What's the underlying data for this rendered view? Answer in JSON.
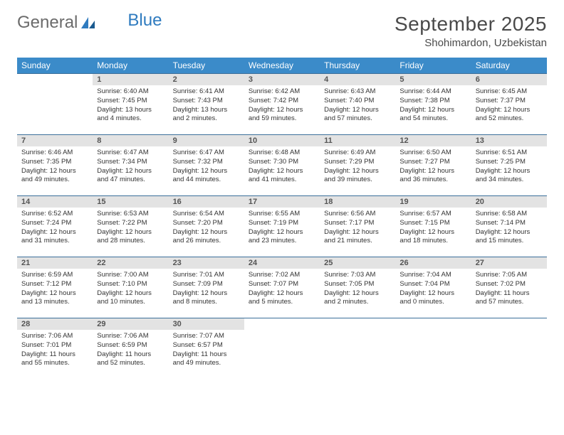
{
  "logo": {
    "text1": "General",
    "text2": "Blue"
  },
  "header": {
    "month": "September 2025",
    "location": "Shohimardon, Uzbekistan"
  },
  "colors": {
    "header_bg": "#3b8bc9",
    "header_text": "#ffffff",
    "row_border": "#3b6f9a",
    "date_bg": "#e3e3e3",
    "logo_gray": "#6b6b6b",
    "logo_blue": "#2f7bbf"
  },
  "day_names": [
    "Sunday",
    "Monday",
    "Tuesday",
    "Wednesday",
    "Thursday",
    "Friday",
    "Saturday"
  ],
  "weeks": [
    [
      {
        "empty": true
      },
      {
        "date": "1",
        "sunrise": "Sunrise: 6:40 AM",
        "sunset": "Sunset: 7:45 PM",
        "daylight": "Daylight: 13 hours and 4 minutes."
      },
      {
        "date": "2",
        "sunrise": "Sunrise: 6:41 AM",
        "sunset": "Sunset: 7:43 PM",
        "daylight": "Daylight: 13 hours and 2 minutes."
      },
      {
        "date": "3",
        "sunrise": "Sunrise: 6:42 AM",
        "sunset": "Sunset: 7:42 PM",
        "daylight": "Daylight: 12 hours and 59 minutes."
      },
      {
        "date": "4",
        "sunrise": "Sunrise: 6:43 AM",
        "sunset": "Sunset: 7:40 PM",
        "daylight": "Daylight: 12 hours and 57 minutes."
      },
      {
        "date": "5",
        "sunrise": "Sunrise: 6:44 AM",
        "sunset": "Sunset: 7:38 PM",
        "daylight": "Daylight: 12 hours and 54 minutes."
      },
      {
        "date": "6",
        "sunrise": "Sunrise: 6:45 AM",
        "sunset": "Sunset: 7:37 PM",
        "daylight": "Daylight: 12 hours and 52 minutes."
      }
    ],
    [
      {
        "date": "7",
        "sunrise": "Sunrise: 6:46 AM",
        "sunset": "Sunset: 7:35 PM",
        "daylight": "Daylight: 12 hours and 49 minutes."
      },
      {
        "date": "8",
        "sunrise": "Sunrise: 6:47 AM",
        "sunset": "Sunset: 7:34 PM",
        "daylight": "Daylight: 12 hours and 47 minutes."
      },
      {
        "date": "9",
        "sunrise": "Sunrise: 6:47 AM",
        "sunset": "Sunset: 7:32 PM",
        "daylight": "Daylight: 12 hours and 44 minutes."
      },
      {
        "date": "10",
        "sunrise": "Sunrise: 6:48 AM",
        "sunset": "Sunset: 7:30 PM",
        "daylight": "Daylight: 12 hours and 41 minutes."
      },
      {
        "date": "11",
        "sunrise": "Sunrise: 6:49 AM",
        "sunset": "Sunset: 7:29 PM",
        "daylight": "Daylight: 12 hours and 39 minutes."
      },
      {
        "date": "12",
        "sunrise": "Sunrise: 6:50 AM",
        "sunset": "Sunset: 7:27 PM",
        "daylight": "Daylight: 12 hours and 36 minutes."
      },
      {
        "date": "13",
        "sunrise": "Sunrise: 6:51 AM",
        "sunset": "Sunset: 7:25 PM",
        "daylight": "Daylight: 12 hours and 34 minutes."
      }
    ],
    [
      {
        "date": "14",
        "sunrise": "Sunrise: 6:52 AM",
        "sunset": "Sunset: 7:24 PM",
        "daylight": "Daylight: 12 hours and 31 minutes."
      },
      {
        "date": "15",
        "sunrise": "Sunrise: 6:53 AM",
        "sunset": "Sunset: 7:22 PM",
        "daylight": "Daylight: 12 hours and 28 minutes."
      },
      {
        "date": "16",
        "sunrise": "Sunrise: 6:54 AM",
        "sunset": "Sunset: 7:20 PM",
        "daylight": "Daylight: 12 hours and 26 minutes."
      },
      {
        "date": "17",
        "sunrise": "Sunrise: 6:55 AM",
        "sunset": "Sunset: 7:19 PM",
        "daylight": "Daylight: 12 hours and 23 minutes."
      },
      {
        "date": "18",
        "sunrise": "Sunrise: 6:56 AM",
        "sunset": "Sunset: 7:17 PM",
        "daylight": "Daylight: 12 hours and 21 minutes."
      },
      {
        "date": "19",
        "sunrise": "Sunrise: 6:57 AM",
        "sunset": "Sunset: 7:15 PM",
        "daylight": "Daylight: 12 hours and 18 minutes."
      },
      {
        "date": "20",
        "sunrise": "Sunrise: 6:58 AM",
        "sunset": "Sunset: 7:14 PM",
        "daylight": "Daylight: 12 hours and 15 minutes."
      }
    ],
    [
      {
        "date": "21",
        "sunrise": "Sunrise: 6:59 AM",
        "sunset": "Sunset: 7:12 PM",
        "daylight": "Daylight: 12 hours and 13 minutes."
      },
      {
        "date": "22",
        "sunrise": "Sunrise: 7:00 AM",
        "sunset": "Sunset: 7:10 PM",
        "daylight": "Daylight: 12 hours and 10 minutes."
      },
      {
        "date": "23",
        "sunrise": "Sunrise: 7:01 AM",
        "sunset": "Sunset: 7:09 PM",
        "daylight": "Daylight: 12 hours and 8 minutes."
      },
      {
        "date": "24",
        "sunrise": "Sunrise: 7:02 AM",
        "sunset": "Sunset: 7:07 PM",
        "daylight": "Daylight: 12 hours and 5 minutes."
      },
      {
        "date": "25",
        "sunrise": "Sunrise: 7:03 AM",
        "sunset": "Sunset: 7:05 PM",
        "daylight": "Daylight: 12 hours and 2 minutes."
      },
      {
        "date": "26",
        "sunrise": "Sunrise: 7:04 AM",
        "sunset": "Sunset: 7:04 PM",
        "daylight": "Daylight: 12 hours and 0 minutes."
      },
      {
        "date": "27",
        "sunrise": "Sunrise: 7:05 AM",
        "sunset": "Sunset: 7:02 PM",
        "daylight": "Daylight: 11 hours and 57 minutes."
      }
    ],
    [
      {
        "date": "28",
        "sunrise": "Sunrise: 7:06 AM",
        "sunset": "Sunset: 7:01 PM",
        "daylight": "Daylight: 11 hours and 55 minutes."
      },
      {
        "date": "29",
        "sunrise": "Sunrise: 7:06 AM",
        "sunset": "Sunset: 6:59 PM",
        "daylight": "Daylight: 11 hours and 52 minutes."
      },
      {
        "date": "30",
        "sunrise": "Sunrise: 7:07 AM",
        "sunset": "Sunset: 6:57 PM",
        "daylight": "Daylight: 11 hours and 49 minutes."
      },
      {
        "empty": true
      },
      {
        "empty": true
      },
      {
        "empty": true
      },
      {
        "empty": true
      }
    ]
  ]
}
